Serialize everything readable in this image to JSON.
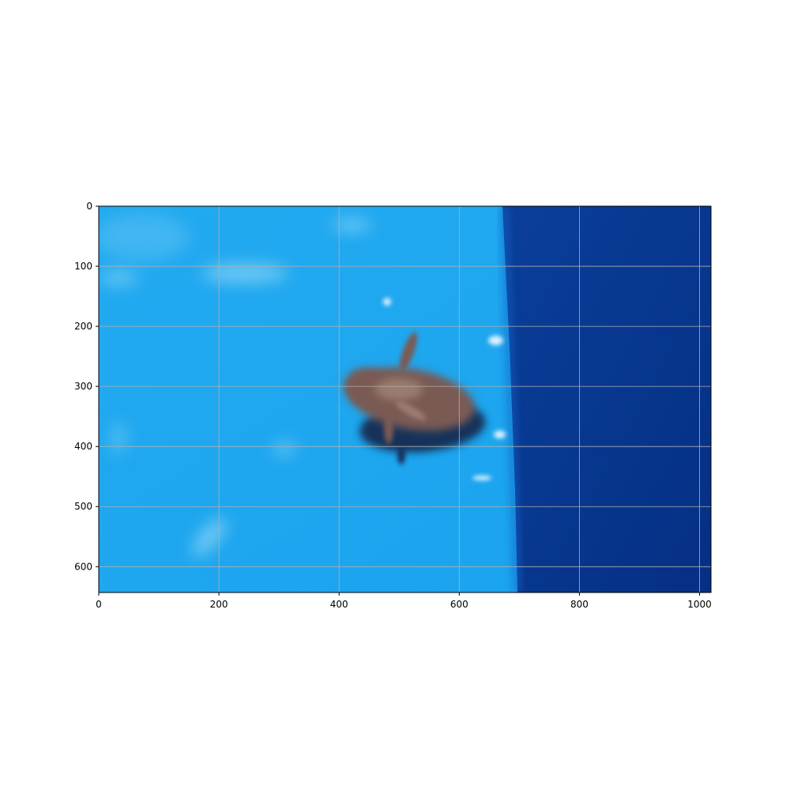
{
  "image": {
    "subject": "insect-in-water",
    "colors": {
      "water_light": "#22aaf0",
      "water_highlight": "#7fd0f6",
      "water_deep": "#0a3f9a",
      "water_deep_dark": "#052f84",
      "insect_body": "#7a5a52",
      "insect_shadow": "#14325a",
      "grid": "#b0b0b0",
      "axis": "#000000"
    }
  },
  "axes": {
    "xlim": [
      0,
      1019
    ],
    "ylim": [
      643,
      0
    ],
    "grid": true,
    "x_ticks": [
      {
        "value": 0,
        "label": "0"
      },
      {
        "value": 200,
        "label": "200"
      },
      {
        "value": 400,
        "label": "400"
      },
      {
        "value": 600,
        "label": "600"
      },
      {
        "value": 800,
        "label": "800"
      },
      {
        "value": 1000,
        "label": "1000"
      }
    ],
    "y_ticks": [
      {
        "value": 0,
        "label": "0"
      },
      {
        "value": 100,
        "label": "100"
      },
      {
        "value": 200,
        "label": "200"
      },
      {
        "value": 300,
        "label": "300"
      },
      {
        "value": 400,
        "label": "400"
      },
      {
        "value": 500,
        "label": "500"
      },
      {
        "value": 600,
        "label": "600"
      }
    ]
  }
}
